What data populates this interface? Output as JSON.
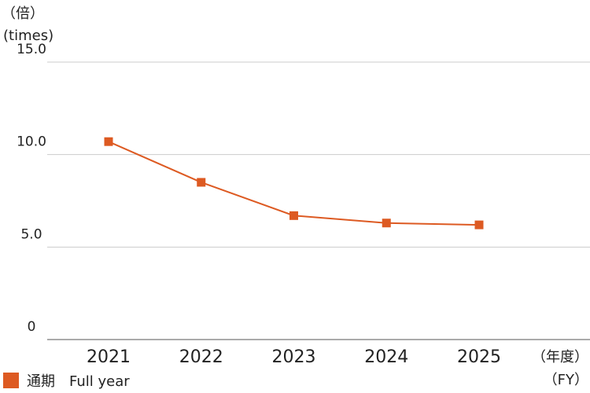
{
  "chart_data": {
    "type": "line",
    "y_unit_labels": [
      "（倍）",
      "(times)"
    ],
    "x_unit_labels": [
      "（年度）",
      "（FY）"
    ],
    "categories": [
      "2021",
      "2022",
      "2023",
      "2024",
      "2025"
    ],
    "series": [
      {
        "name": "通期　Full year",
        "color": "#dd5a22",
        "values": [
          10.7,
          8.5,
          6.7,
          6.3,
          6.2
        ]
      }
    ],
    "ylim": [
      0,
      15
    ],
    "yticks": [
      0,
      {
        "value": 5,
        "label": "5.0"
      },
      {
        "value": 10,
        "label": "10.0"
      },
      {
        "value": 15,
        "label": "15.0"
      }
    ],
    "grid": true
  }
}
